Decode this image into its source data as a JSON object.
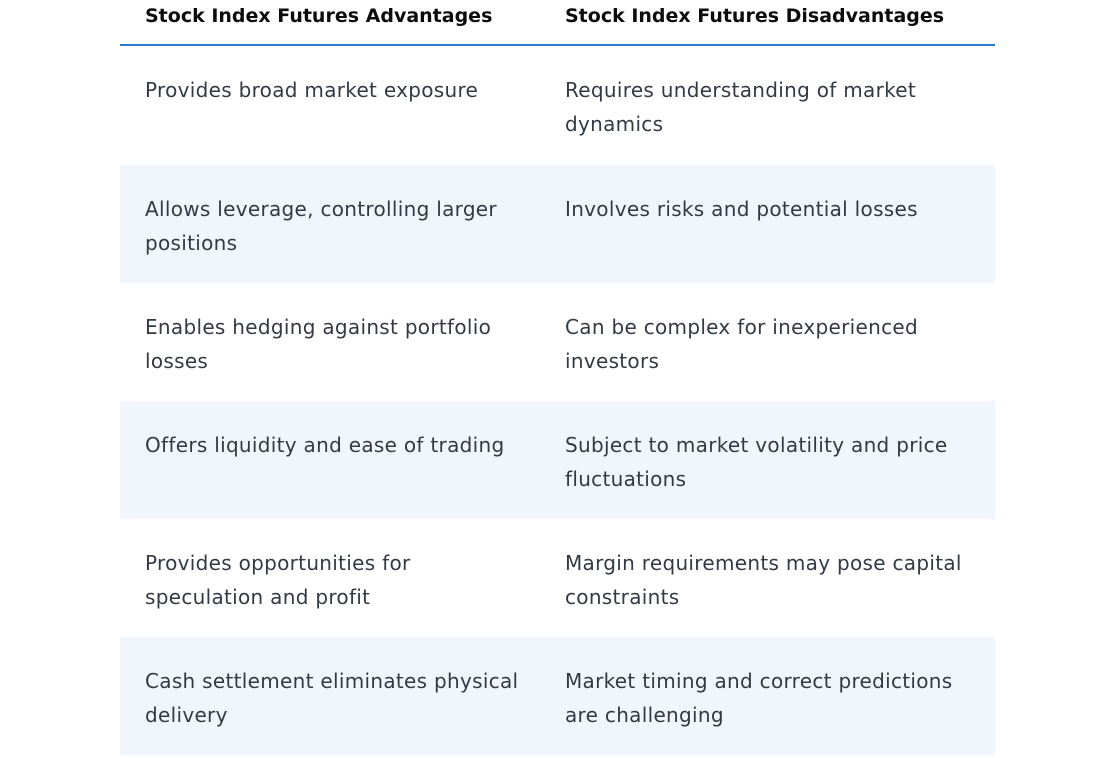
{
  "table": {
    "headers": {
      "advantages": "Stock Index Futures Advantages",
      "disadvantages": "Stock Index Futures Disadvantages"
    },
    "rows": [
      {
        "advantage": "Provides broad market exposure",
        "disadvantage": "Requires understanding of market dynamics"
      },
      {
        "advantage": "Allows leverage, controlling larger positions",
        "disadvantage": "Involves risks and potential losses"
      },
      {
        "advantage": "Enables hedging against portfolio losses",
        "disadvantage": "Can be complex for inexperienced investors"
      },
      {
        "advantage": "Offers liquidity and ease of trading",
        "disadvantage": "Subject to market volatility and price fluctuations"
      },
      {
        "advantage": "Provides opportunities for speculation and profit",
        "disadvantage": "Margin requirements may pose capital constraints"
      },
      {
        "advantage": "Cash settlement eliminates physical delivery",
        "disadvantage": "Market timing and correct predictions are challenging"
      }
    ]
  },
  "colors": {
    "header_rule": "#2a7bd1",
    "shaded_row": "#f1f6fd",
    "body_text": "#333a44",
    "header_text": "#0c0c0c"
  }
}
